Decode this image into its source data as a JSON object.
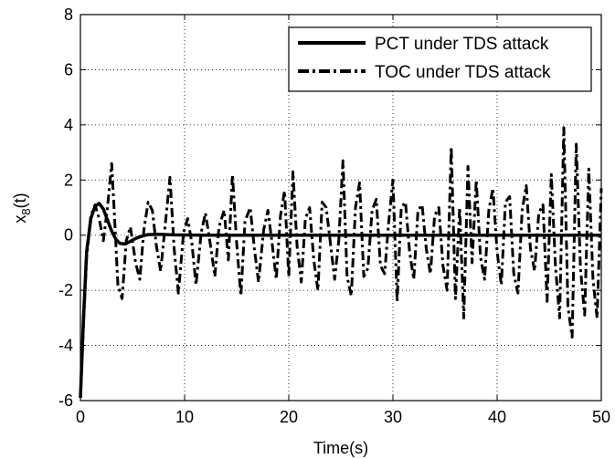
{
  "chart_data": {
    "type": "line",
    "title": "",
    "xlabel": "Time(s)",
    "ylabel_main": "x",
    "ylabel_sub": "8",
    "ylabel_tail": "(t)",
    "xlim": [
      0,
      50
    ],
    "ylim": [
      -6,
      8
    ],
    "xticks": [
      0,
      10,
      20,
      30,
      40,
      50
    ],
    "yticks": [
      -6,
      -4,
      -2,
      0,
      2,
      4,
      6,
      8
    ],
    "grid": true,
    "grid_style": "dotted",
    "legend_position": "top-right",
    "series": [
      {
        "name": "PCT under TDS attack",
        "style": "solid",
        "color": "#000000",
        "x": [
          0,
          0.3,
          0.6,
          1.0,
          1.4,
          1.8,
          2.2,
          2.6,
          3.0,
          3.4,
          3.8,
          4.3,
          4.8,
          5.3,
          5.8,
          6.5,
          7.5,
          9,
          12,
          20,
          30,
          40,
          50
        ],
        "y": [
          -5.9,
          -3.0,
          -0.6,
          0.6,
          1.05,
          1.15,
          0.95,
          0.55,
          0.15,
          -0.15,
          -0.3,
          -0.32,
          -0.22,
          -0.12,
          -0.05,
          0.02,
          0.03,
          0.01,
          0,
          0,
          0,
          0,
          0
        ]
      },
      {
        "name": "TOC under TDS attack",
        "style": "dashdot",
        "color": "#000000",
        "x": [
          0,
          0.3,
          0.6,
          1.0,
          1.4,
          1.8,
          2.2,
          2.6,
          3.0,
          3.3,
          3.6,
          4.0,
          4.4,
          4.8,
          5.3,
          5.7,
          6.1,
          6.5,
          6.9,
          7.3,
          7.7,
          8.2,
          8.6,
          9.0,
          9.4,
          9.9,
          10.3,
          10.7,
          11.1,
          11.6,
          12.0,
          12.5,
          12.9,
          13.3,
          13.8,
          14.2,
          14.6,
          15.0,
          15.4,
          15.8,
          16.3,
          16.7,
          17.1,
          17.6,
          18.0,
          18.4,
          18.8,
          19.2,
          19.6,
          20.0,
          20.4,
          20.8,
          21.2,
          21.6,
          22.0,
          22.4,
          22.8,
          23.2,
          23.6,
          24.0,
          24.4,
          24.8,
          25.2,
          25.6,
          26.0,
          26.4,
          26.8,
          27.2,
          27.6,
          28.0,
          28.4,
          28.8,
          29.2,
          29.6,
          30.0,
          30.4,
          30.8,
          31.2,
          31.6,
          32.0,
          32.4,
          32.8,
          33.2,
          33.6,
          34.0,
          34.4,
          34.8,
          35.2,
          35.6,
          36.0,
          36.4,
          36.8,
          37.2,
          37.6,
          38.0,
          38.4,
          38.8,
          39.2,
          39.6,
          40.0,
          40.4,
          40.8,
          41.2,
          41.6,
          42.0,
          42.4,
          42.8,
          43.2,
          43.6,
          44.0,
          44.4,
          44.8,
          45.2,
          45.6,
          46.0,
          46.4,
          46.8,
          47.2,
          47.6,
          48.0,
          48.4,
          48.8,
          49.2,
          49.6,
          50.0
        ],
        "y": [
          -5.9,
          -3.2,
          -0.8,
          0.7,
          1.1,
          0.6,
          -0.2,
          1.0,
          2.6,
          0.5,
          -1.8,
          -2.3,
          -0.2,
          0.3,
          -1.0,
          -1.6,
          0.2,
          1.2,
          0.9,
          -0.4,
          -1.3,
          0.6,
          2.1,
          -0.5,
          -2.1,
          0.1,
          0.6,
          -0.3,
          -1.8,
          0.1,
          0.8,
          -0.4,
          -1.5,
          0.3,
          0.9,
          -0.9,
          2.2,
          -0.3,
          -2.2,
          0.5,
          1.0,
          -0.5,
          -1.7,
          0.2,
          0.9,
          -0.3,
          -1.6,
          0.7,
          1.6,
          -1.5,
          2.3,
          -0.4,
          -1.7,
          0.6,
          1.0,
          -0.9,
          -2.0,
          1.2,
          1.0,
          -0.3,
          -1.6,
          -0.2,
          2.7,
          -1.5,
          -2.2,
          1.0,
          1.9,
          -1.5,
          -1.2,
          0.9,
          1.3,
          -1.1,
          -1.4,
          0.5,
          2.0,
          -2.4,
          1.0,
          1.2,
          -0.6,
          -1.6,
          0.9,
          1.1,
          -0.5,
          -1.4,
          0.7,
          1.0,
          -1.1,
          -2.0,
          3.2,
          -2.3,
          1.0,
          -3.0,
          2.5,
          -1.0,
          2.0,
          -0.8,
          -1.6,
          0.9,
          1.7,
          -0.6,
          -1.8,
          1.2,
          1.4,
          -1.4,
          -2.1,
          0.9,
          1.8,
          -0.5,
          -1.3,
          0.8,
          1.1,
          -2.4,
          2.2,
          -1.1,
          -3.0,
          3.9,
          -2.6,
          -3.7,
          3.3,
          -1.2,
          -2.9,
          2.4,
          -1.6,
          -3.0,
          1.7
        ]
      }
    ]
  }
}
